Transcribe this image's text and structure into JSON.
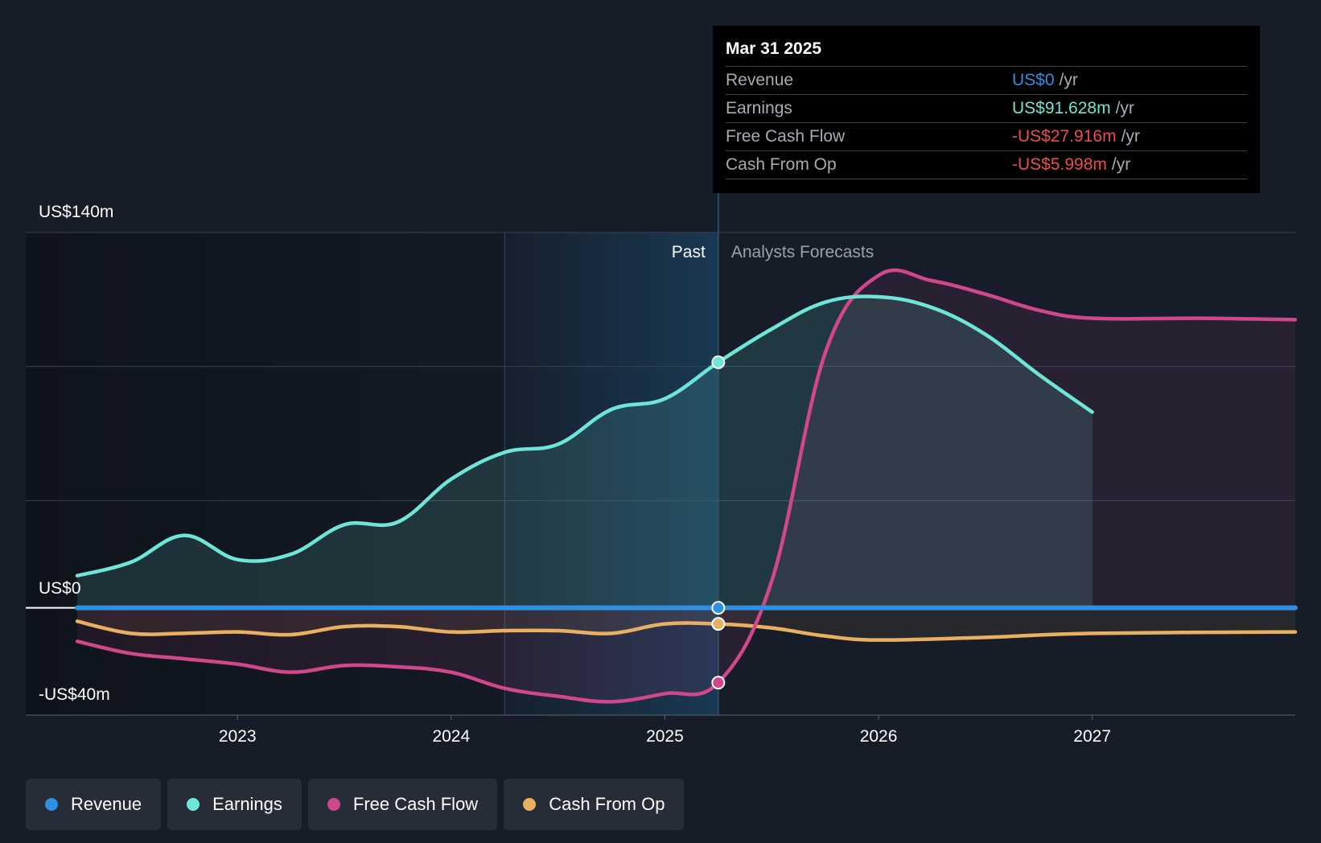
{
  "chart_data": {
    "type": "line",
    "y_tick_labels": [
      {
        "value": 140,
        "label": "US$140m"
      },
      {
        "value": 0,
        "label": "US$0"
      },
      {
        "value": -40,
        "label": "-US$40m"
      }
    ],
    "ylim": [
      -40,
      140
    ],
    "xlim": [
      2022.25,
      2027.95
    ],
    "x_ticks": [
      2023,
      2024,
      2025,
      2026,
      2027
    ],
    "x_tick_labels": [
      "2023",
      "2024",
      "2025",
      "2026",
      "2027"
    ],
    "grid": "horizontal",
    "past_label": "Past",
    "forecast_label": "Analysts Forecasts",
    "divider_x": 2025.25,
    "highlight_band": [
      2024.25,
      2025.25
    ],
    "series": [
      {
        "name": "Revenue",
        "color": "#2f8fe0",
        "x": [
          2022.25,
          2023.0,
          2024.0,
          2025.0,
          2025.25,
          2026.0,
          2027.0,
          2027.95
        ],
        "values": [
          0,
          0,
          0,
          0,
          0,
          0,
          0,
          0
        ]
      },
      {
        "name": "Earnings",
        "color": "#6ee5d8",
        "x": [
          2022.25,
          2022.5,
          2022.75,
          2023.0,
          2023.25,
          2023.5,
          2023.75,
          2024.0,
          2024.25,
          2024.5,
          2024.75,
          2025.0,
          2025.25,
          2025.5,
          2025.75,
          2026.0,
          2026.25,
          2026.5,
          2026.75,
          2027.0
        ],
        "values": [
          12,
          17,
          27,
          18,
          20,
          31,
          32,
          48,
          58,
          61,
          74,
          78,
          91.6,
          104,
          114,
          116,
          112,
          102,
          87,
          73
        ]
      },
      {
        "name": "Free Cash Flow",
        "color": "#d0488a",
        "x": [
          2022.25,
          2022.5,
          2022.75,
          2023.0,
          2023.25,
          2023.5,
          2023.75,
          2024.0,
          2024.25,
          2024.5,
          2024.75,
          2025.0,
          2025.25,
          2025.5,
          2025.75,
          2026.0,
          2026.25,
          2026.5,
          2026.75,
          2027.0,
          2027.5,
          2027.95
        ],
        "values": [
          -12.5,
          -17,
          -19,
          -21,
          -24,
          -21.5,
          -22,
          -24,
          -30,
          -33,
          -35,
          -32,
          -27.9,
          10,
          95,
          124,
          122,
          117,
          111,
          108,
          108,
          107.5
        ]
      },
      {
        "name": "Cash From Op",
        "color": "#e8b060",
        "x": [
          2022.25,
          2022.5,
          2022.75,
          2023.0,
          2023.25,
          2023.5,
          2023.75,
          2024.0,
          2024.25,
          2024.5,
          2024.75,
          2025.0,
          2025.25,
          2025.5,
          2025.75,
          2026.0,
          2026.5,
          2027.0,
          2027.95
        ],
        "values": [
          -5,
          -9.5,
          -9.5,
          -9,
          -10,
          -7,
          -7,
          -9,
          -8.5,
          -8.5,
          -9.5,
          -6,
          -6,
          -7.5,
          -10.5,
          -12,
          -11,
          -9.5,
          -9
        ]
      }
    ]
  },
  "tooltip": {
    "date": "Mar 31 2025",
    "rows": [
      {
        "label": "Revenue",
        "value": "US$0",
        "unit": "/yr",
        "color": "#2f8fe0"
      },
      {
        "label": "Earnings",
        "value": "US$91.628m",
        "unit": "/yr",
        "color": "#6ee5d8"
      },
      {
        "label": "Free Cash Flow",
        "value": "-US$27.916m",
        "unit": "/yr",
        "color": "#ee4b4b"
      },
      {
        "label": "Cash From Op",
        "value": "-US$5.998m",
        "unit": "/yr",
        "color": "#ee4b4b"
      }
    ]
  },
  "legend": [
    {
      "label": "Revenue",
      "color": "#2f8fe0"
    },
    {
      "label": "Earnings",
      "color": "#6ee5d8"
    },
    {
      "label": "Free Cash Flow",
      "color": "#d0488a"
    },
    {
      "label": "Cash From Op",
      "color": "#e8b060"
    }
  ]
}
